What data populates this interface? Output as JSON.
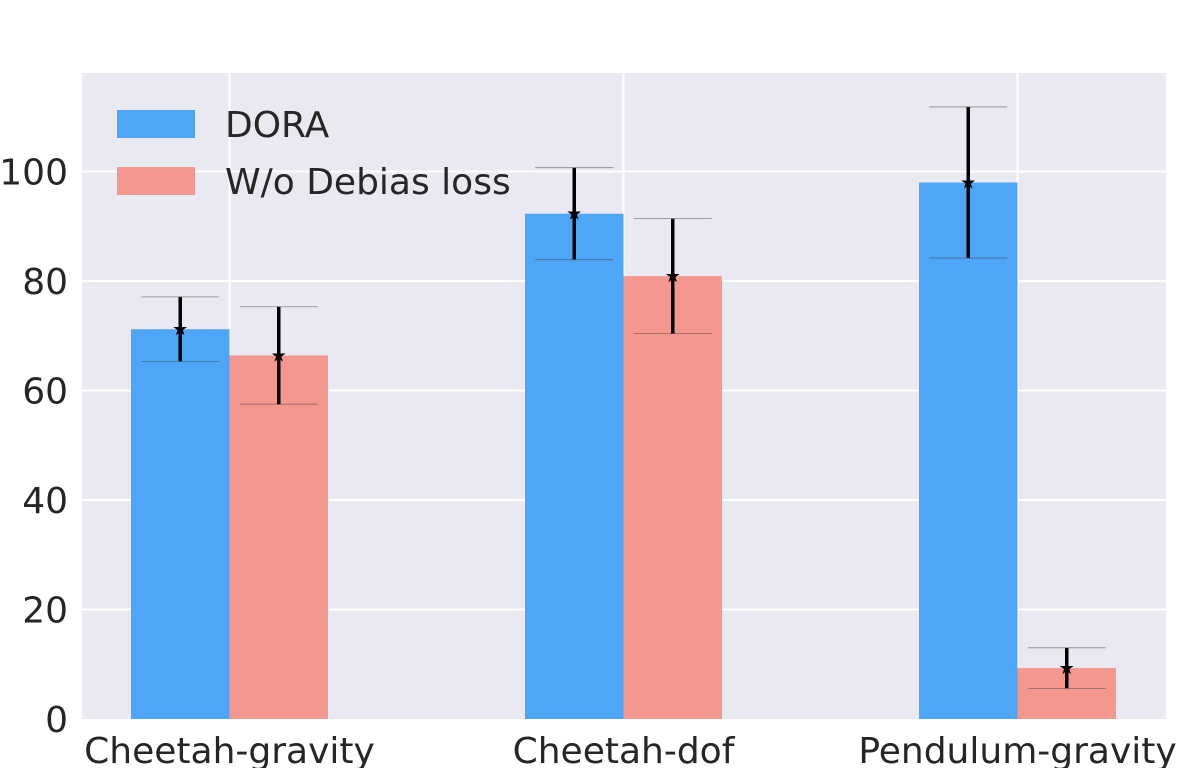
{
  "chart_data": {
    "type": "bar",
    "title": "",
    "xlabel": "",
    "ylabel": "",
    "categories": [
      "Cheetah-gravity",
      "Cheetah-dof",
      "Pendulum-gravity"
    ],
    "series": [
      {
        "name": "DORA",
        "values": [
          71.2,
          92.3,
          98.0
        ],
        "errors": [
          5.9,
          8.4,
          13.8
        ],
        "color": "#4da6f8"
      },
      {
        "name": "W/o Debias loss",
        "values": [
          66.4,
          80.9,
          9.3
        ],
        "errors": [
          8.9,
          10.5,
          3.7
        ],
        "color": "#f4978e"
      }
    ],
    "ylim": [
      0,
      118
    ],
    "yticks": [
      0,
      20,
      40,
      60,
      80,
      100
    ],
    "grid": true,
    "legend_position": "top-left",
    "background_color": "#e9e9f1",
    "grid_color": "#ffffff",
    "errorbar_color": "#000000"
  }
}
